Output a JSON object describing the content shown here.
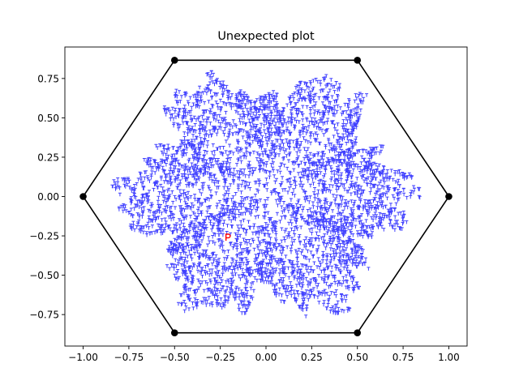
{
  "chart_data": {
    "type": "scatter",
    "title": "Unexpected plot",
    "xlabel": "",
    "ylabel": "",
    "xlim": [
      -1.1,
      1.1
    ],
    "ylim": [
      -0.95,
      0.95
    ],
    "x_ticks": [
      -1.0,
      -0.75,
      -0.5,
      -0.25,
      0.0,
      0.25,
      0.5,
      0.75,
      1.0
    ],
    "x_tick_labels": [
      "−1.00",
      "−0.75",
      "−0.50",
      "−0.25",
      "0.00",
      "0.25",
      "0.50",
      "0.75",
      "1.00"
    ],
    "y_ticks": [
      -0.75,
      -0.5,
      -0.25,
      0.0,
      0.25,
      0.5,
      0.75
    ],
    "y_tick_labels": [
      "−0.75",
      "−0.50",
      "−0.25",
      "0.00",
      "0.25",
      "0.50",
      "0.75"
    ],
    "grid": false,
    "legend": "none",
    "hexagon": {
      "vertices": [
        [
          1.0,
          0.0
        ],
        [
          0.5,
          0.866
        ],
        [
          -0.5,
          0.866
        ],
        [
          -1.0,
          0.0
        ],
        [
          -0.5,
          -0.866
        ],
        [
          0.5,
          -0.866
        ]
      ],
      "color": "#000000"
    },
    "cloud": {
      "color": "#0000ff",
      "marker": "T",
      "extent_radius": 0.86
    },
    "highlight": {
      "x": -0.21,
      "y": -0.26,
      "color": "#ff0000",
      "marker": "P"
    }
  }
}
